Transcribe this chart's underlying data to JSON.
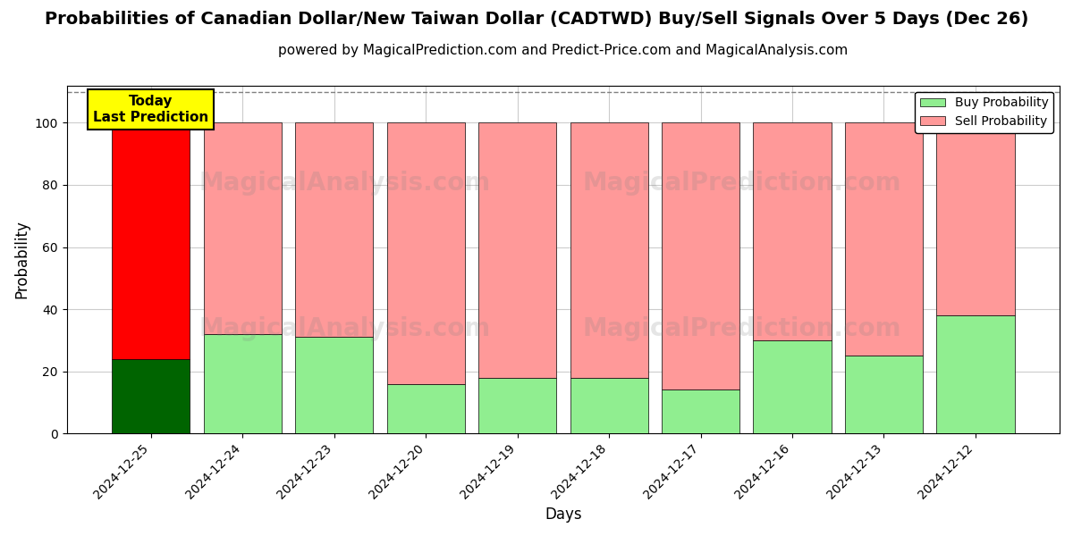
{
  "title": "Probabilities of Canadian Dollar/New Taiwan Dollar (CADTWD) Buy/Sell Signals Over 5 Days (Dec 26)",
  "subtitle": "powered by MagicalPrediction.com and Predict-Price.com and MagicalAnalysis.com",
  "xlabel": "Days",
  "ylabel": "Probability",
  "dates": [
    "2024-12-25",
    "2024-12-24",
    "2024-12-23",
    "2024-12-20",
    "2024-12-19",
    "2024-12-18",
    "2024-12-17",
    "2024-12-16",
    "2024-12-13",
    "2024-12-12"
  ],
  "buy_values": [
    24,
    32,
    31,
    16,
    18,
    18,
    14,
    30,
    25,
    38
  ],
  "sell_values": [
    76,
    68,
    69,
    84,
    82,
    82,
    86,
    70,
    75,
    62
  ],
  "today_index": 0,
  "today_buy_color": "#006400",
  "today_sell_color": "#ff0000",
  "other_buy_color": "#90EE90",
  "other_sell_color": "#FF9999",
  "ylim_max": 112,
  "yticks": [
    0,
    20,
    40,
    60,
    80,
    100
  ],
  "dashed_line_y": 110,
  "today_label": "Today\nLast Prediction",
  "legend_buy_label": "Buy Probability",
  "legend_sell_label": "Sell Probability",
  "bar_width": 0.85,
  "grid_color": "#cccccc",
  "background_color": "#ffffff",
  "title_fontsize": 14,
  "subtitle_fontsize": 11,
  "axis_label_fontsize": 12,
  "tick_fontsize": 10
}
